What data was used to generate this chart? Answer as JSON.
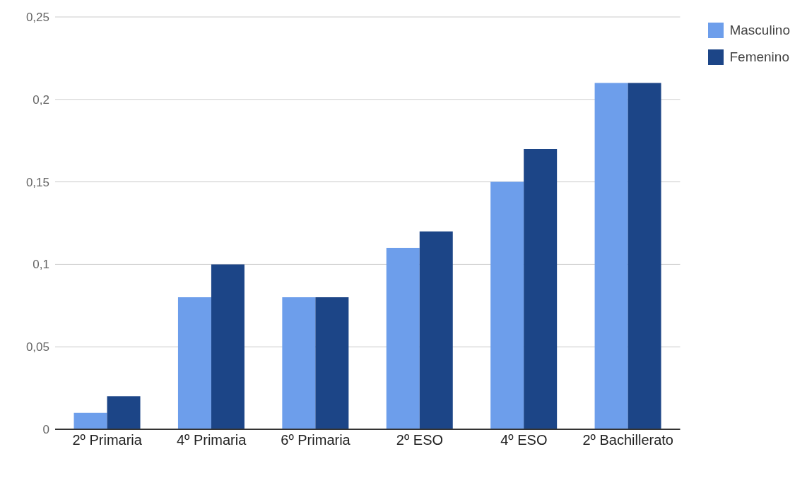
{
  "chart_data": {
    "type": "bar",
    "categories": [
      "2º Primaria",
      "4º Primaria",
      "6º Primaria",
      "2º ESO",
      "4º ESO",
      "2º Bachillerato"
    ],
    "series": [
      {
        "name": "Masculino",
        "color": "#6d9eeb",
        "values": [
          0.01,
          0.08,
          0.08,
          0.11,
          0.15,
          0.21
        ]
      },
      {
        "name": "Femenino",
        "color": "#1c4587",
        "values": [
          0.02,
          0.1,
          0.08,
          0.12,
          0.17,
          0.21
        ]
      }
    ],
    "ylim": [
      0,
      0.25
    ],
    "yticks": [
      {
        "value": 0,
        "label": "0"
      },
      {
        "value": 0.05,
        "label": "0,05"
      },
      {
        "value": 0.1,
        "label": "0,1"
      },
      {
        "value": 0.15,
        "label": "0,15"
      },
      {
        "value": 0.2,
        "label": "0,2"
      },
      {
        "value": 0.25,
        "label": "0,25"
      }
    ],
    "grid": "y",
    "legend": "top right"
  }
}
